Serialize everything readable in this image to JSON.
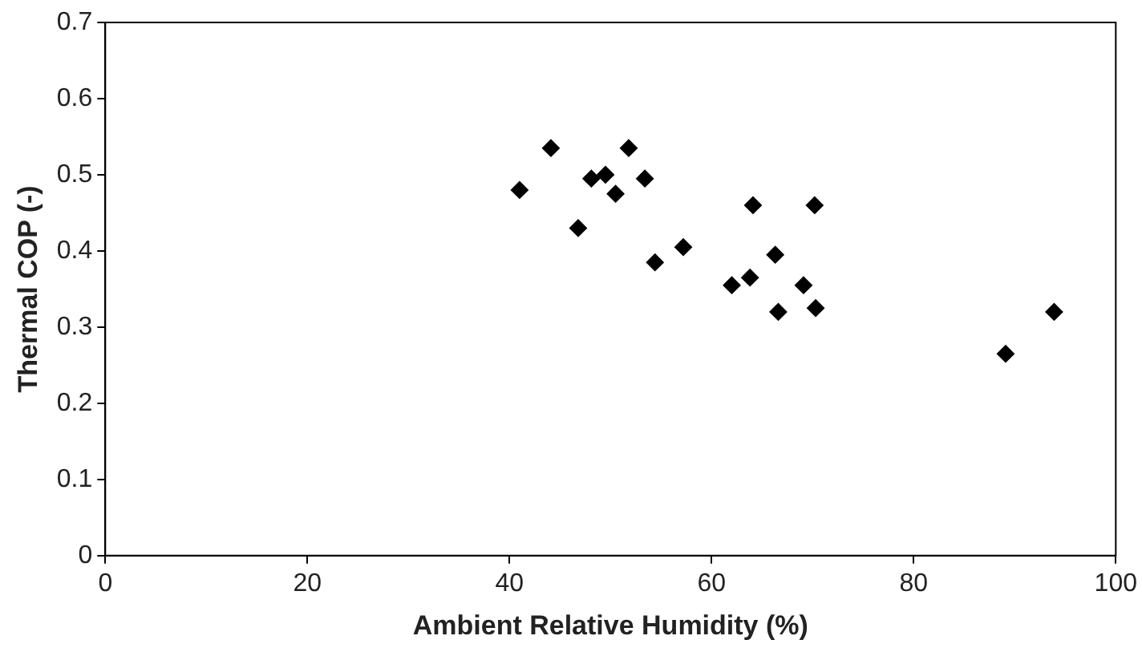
{
  "chart_data": {
    "type": "scatter",
    "xlabel": "Ambient Relative Humidity (%)",
    "ylabel": "Thermal COP (-)",
    "x": [
      41.0,
      44.1,
      46.8,
      48.1,
      49.5,
      50.5,
      51.8,
      53.4,
      54.4,
      57.2,
      64.1,
      70.2,
      62.0,
      63.8,
      66.3,
      66.6,
      69.1,
      70.3,
      89.1,
      93.9
    ],
    "values": [
      0.48,
      0.535,
      0.43,
      0.495,
      0.5,
      0.475,
      0.535,
      0.495,
      0.385,
      0.405,
      0.46,
      0.46,
      0.355,
      0.365,
      0.395,
      0.32,
      0.355,
      0.325,
      0.265,
      0.32
    ],
    "color": "#000000",
    "marker": "diamond",
    "xlim": [
      0,
      100
    ],
    "xticks": [
      0,
      20,
      40,
      60,
      80,
      100
    ],
    "ylim": [
      0,
      0.7
    ],
    "yticks": [
      0,
      0.1,
      0.2,
      0.3,
      0.4,
      0.5,
      0.6,
      0.7
    ],
    "grid": false,
    "legend": false
  }
}
